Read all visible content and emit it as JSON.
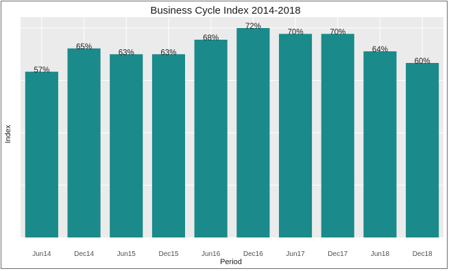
{
  "chart_data": {
    "type": "bar",
    "title": "Business Cycle Index 2014-2018",
    "xlabel": "Period",
    "ylabel": "Index",
    "categories": [
      "Jun14",
      "Dec14",
      "Jun15",
      "Dec15",
      "Jun16",
      "Dec16",
      "Jun17",
      "Dec17",
      "Jun18",
      "Dec18"
    ],
    "values": [
      57,
      65,
      63,
      63,
      68,
      72,
      70,
      70,
      64,
      60
    ],
    "data_labels": [
      "57%",
      "65%",
      "63%",
      "63%",
      "68%",
      "72%",
      "70%",
      "70%",
      "64%",
      "60%"
    ],
    "ylim": [
      0,
      72
    ],
    "grid": true,
    "legend": "none",
    "colors": {
      "bar": "#1a8a8a",
      "panel": "#ebebeb",
      "grid": "#ffffff"
    }
  }
}
